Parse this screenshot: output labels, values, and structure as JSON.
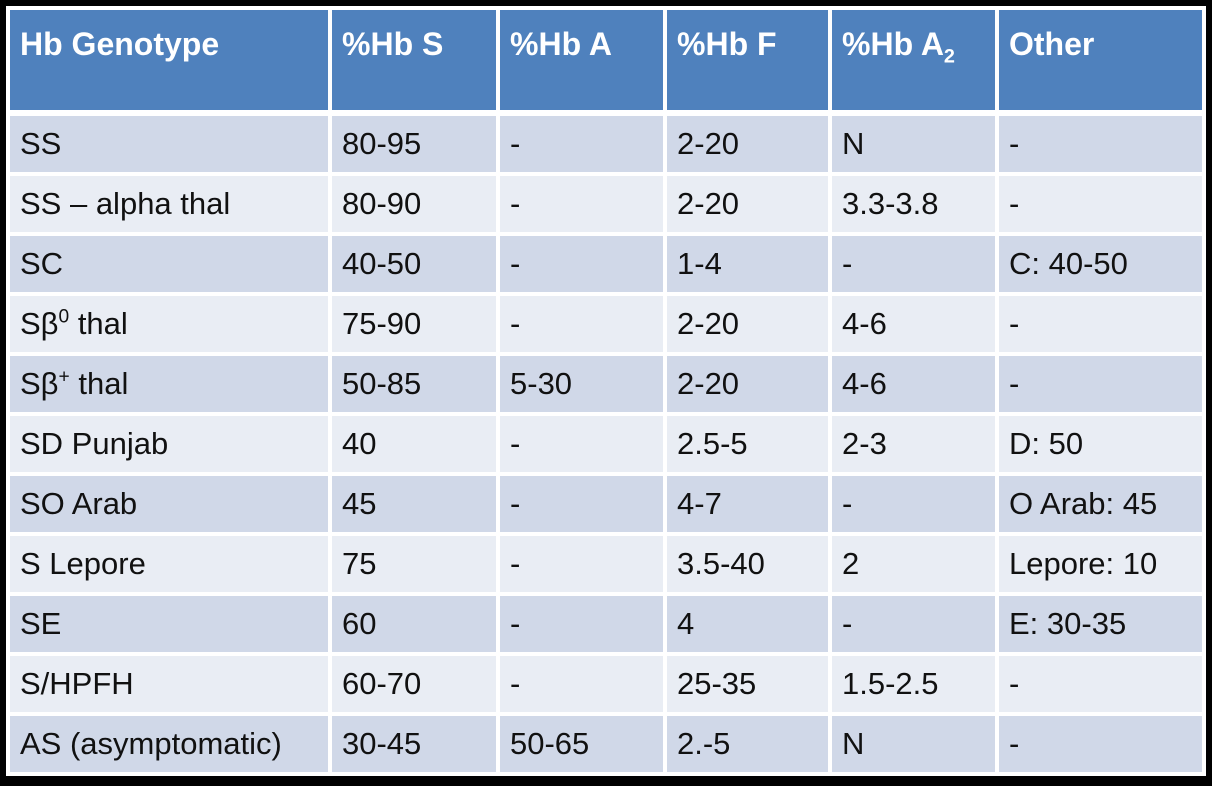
{
  "chart_data": {
    "type": "table",
    "columns": [
      "Hb Genotype",
      "%Hb S",
      "%Hb A",
      "%Hb F",
      "%Hb A_{2}",
      "Other"
    ],
    "rows": [
      [
        "SS",
        "80-95",
        "-",
        "2-20",
        "N",
        "-"
      ],
      [
        "SS – alpha thal",
        "80-90",
        "-",
        "2-20",
        "3.3-3.8",
        "-"
      ],
      [
        "SC",
        "40-50",
        "-",
        "1-4",
        "-",
        "C: 40-50"
      ],
      [
        "Sβ^{0} thal",
        "75-90",
        "-",
        "2-20",
        "4-6",
        "-"
      ],
      [
        "Sβ^{+} thal",
        "50-85",
        "5-30",
        "2-20",
        "4-6",
        "-"
      ],
      [
        "SD Punjab",
        "40",
        "-",
        "2.5-5",
        "2-3",
        "D: 50"
      ],
      [
        "SO Arab",
        "45",
        "-",
        "4-7",
        "-",
        "O Arab: 45"
      ],
      [
        "S Lepore",
        "75",
        "-",
        "3.5-40",
        "2",
        "Lepore: 10"
      ],
      [
        "SE",
        "60",
        "-",
        "4",
        "-",
        "E: 30-35"
      ],
      [
        "S/HPFH",
        "60-70",
        "-",
        "25-35",
        "1.5-2.5",
        "-"
      ],
      [
        "AS (asymptomatic)",
        "30-45",
        "50-65",
        "2.-5",
        "N",
        "-"
      ]
    ],
    "legend": null,
    "title": null
  },
  "colors": {
    "frame": "#000000",
    "grid": "#ffffff",
    "header_bg": "#4F81BD",
    "header_text": "#ffffff",
    "row_dark": "#D0D8E8",
    "row_light": "#E9EDF4",
    "cell_text": "#111111"
  }
}
